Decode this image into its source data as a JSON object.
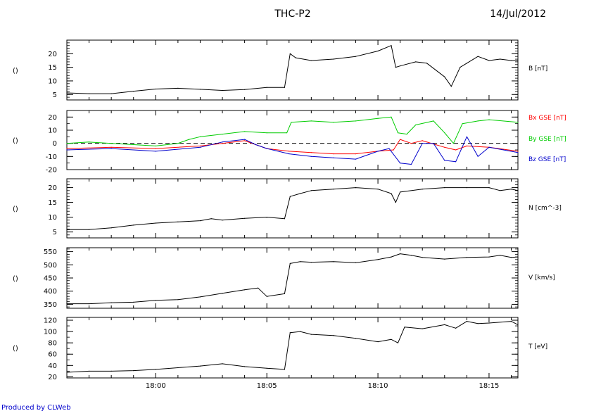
{
  "header": {
    "title": "THC-P2",
    "date": "14/Jul/2012"
  },
  "footer": {
    "credit": "Produced by CLWeb"
  },
  "time_axis": {
    "start": "17:56",
    "end": "18:16.3",
    "ticks": [
      "18:00",
      "18:05",
      "18:10",
      "18:15"
    ]
  },
  "chart_data": [
    {
      "type": "line",
      "ylabel": "()",
      "right_label": "B [nT]",
      "ylim": [
        3,
        25
      ],
      "yticks": [
        5,
        10,
        15,
        20
      ],
      "series": [
        {
          "name": "B [nT]",
          "color": "#000000",
          "x": [
            "17:56",
            "17:57",
            "17:58",
            "17:59",
            "18:00",
            "18:01",
            "18:02",
            "18:03",
            "18:04",
            "18:05",
            "18:05.8",
            "18:06.05",
            "18:06.3",
            "18:07",
            "18:08",
            "18:09",
            "18:10",
            "18:10.6",
            "18:10.8",
            "18:11",
            "18:11.7",
            "18:12.2",
            "18:13",
            "18:13.3",
            "18:13.7",
            "18:14",
            "18:14.5",
            "18:15",
            "18:15.5",
            "18:16",
            "18:16.3"
          ],
          "values": [
            5.6,
            5.3,
            5.3,
            6.2,
            7.0,
            7.3,
            6.9,
            6.5,
            6.8,
            7.6,
            7.6,
            20.0,
            18.5,
            17.5,
            18.0,
            19.0,
            21.0,
            23.0,
            15.0,
            15.5,
            17.0,
            16.5,
            11.5,
            8.0,
            15.0,
            16.5,
            19.0,
            17.5,
            18.0,
            17.5,
            17.5
          ]
        }
      ]
    },
    {
      "type": "line",
      "ylabel": "()",
      "ylim": [
        -20,
        25
      ],
      "yticks": [
        -20,
        -10,
        0,
        10,
        20
      ],
      "zero_line": true,
      "series": [
        {
          "name": "Bx GSE [nT]",
          "color": "#ff0000",
          "x": [
            "17:56",
            "17:58",
            "18:00",
            "18:02",
            "18:03",
            "18:04",
            "18:04.5",
            "18:05",
            "18:06",
            "18:07",
            "18:08",
            "18:09",
            "18:10",
            "18:10.7",
            "18:11",
            "18:11.5",
            "18:12",
            "18:13",
            "18:13.5",
            "18:14",
            "18:15",
            "18:16.3"
          ],
          "values": [
            -4,
            -3,
            -4,
            -2,
            0,
            2,
            -1,
            -4,
            -6,
            -7,
            -8,
            -8,
            -6,
            -5,
            3,
            0,
            2,
            -3,
            -5,
            -2,
            -3,
            -6
          ]
        },
        {
          "name": "By GSE [nT]",
          "color": "#00cc00",
          "x": [
            "17:56",
            "17:57",
            "17:58",
            "17:59",
            "18:00",
            "18:01",
            "18:01.5",
            "18:02",
            "18:03",
            "18:04",
            "18:05",
            "18:05.9",
            "18:06.1",
            "18:07",
            "18:08",
            "18:09",
            "18:10",
            "18:10.6",
            "18:10.9",
            "18:11.3",
            "18:11.7",
            "18:12.5",
            "18:13",
            "18:13.4",
            "18:13.8",
            "18:14.5",
            "18:15",
            "18:16.3"
          ],
          "values": [
            0,
            1,
            0,
            -1,
            -2,
            0,
            3,
            5,
            7,
            9,
            8,
            8,
            16,
            17,
            16,
            17,
            19,
            20,
            8,
            7,
            14,
            17,
            8,
            0,
            15,
            17,
            18,
            16
          ]
        },
        {
          "name": "Bz GSE [nT]",
          "color": "#0000cc",
          "x": [
            "17:56",
            "17:58",
            "18:00",
            "18:02",
            "18:03",
            "18:04",
            "18:04.5",
            "18:05",
            "18:06",
            "18:07",
            "18:08",
            "18:09",
            "18:10",
            "18:10.5",
            "18:11",
            "18:11.5",
            "18:12",
            "18:12.5",
            "18:13",
            "18:13.5",
            "18:14",
            "18:14.5",
            "18:15",
            "18:16.3"
          ],
          "values": [
            -5,
            -4,
            -6,
            -3,
            1,
            3,
            -1,
            -4,
            -8,
            -10,
            -11,
            -12,
            -6,
            -4,
            -15,
            -16,
            0,
            0,
            -13,
            -14,
            5,
            -10,
            -3,
            -7
          ]
        }
      ]
    },
    {
      "type": "line",
      "ylabel": "()",
      "right_label": "N [cm^-3]",
      "ylim": [
        3,
        23
      ],
      "yticks": [
        5,
        10,
        15,
        20
      ],
      "series": [
        {
          "name": "N [cm^-3]",
          "color": "#000000",
          "x": [
            "17:56",
            "17:57",
            "17:58",
            "17:59",
            "18:00",
            "18:01",
            "18:02",
            "18:02.5",
            "18:03",
            "18:04",
            "18:05",
            "18:05.8",
            "18:06.05",
            "18:06.5",
            "18:07",
            "18:08",
            "18:09",
            "18:10",
            "18:10.6",
            "18:10.8",
            "18:11",
            "18:12",
            "18:13",
            "18:14",
            "18:15",
            "18:15.5",
            "18:16",
            "18:16.3"
          ],
          "values": [
            5.8,
            5.8,
            6.4,
            7.3,
            8.0,
            8.4,
            8.8,
            9.5,
            9.0,
            9.6,
            10.0,
            9.5,
            17.0,
            18.0,
            19.0,
            19.5,
            20.0,
            19.5,
            18.0,
            15.0,
            18.5,
            19.5,
            20.0,
            20.0,
            20.0,
            19.0,
            19.5,
            19.0
          ]
        }
      ]
    },
    {
      "type": "line",
      "ylabel": "()",
      "right_label": "V [km/s]",
      "ylim": [
        335,
        565
      ],
      "yticks": [
        350,
        400,
        450,
        500,
        550
      ],
      "series": [
        {
          "name": "V [km/s]",
          "color": "#000000",
          "x": [
            "17:56",
            "17:57",
            "17:58",
            "17:59",
            "18:00",
            "18:01",
            "18:02",
            "18:03",
            "18:04",
            "18:04.6",
            "18:05",
            "18:05.8",
            "18:06.05",
            "18:06.5",
            "18:07",
            "18:08",
            "18:09",
            "18:10",
            "18:10.6",
            "18:11",
            "18:11.5",
            "18:12",
            "18:13",
            "18:14",
            "18:15",
            "18:15.5",
            "18:16",
            "18:16.3"
          ],
          "values": [
            352,
            352,
            356,
            358,
            365,
            368,
            378,
            392,
            405,
            412,
            380,
            390,
            505,
            512,
            510,
            512,
            508,
            520,
            530,
            542,
            536,
            528,
            522,
            528,
            530,
            536,
            528,
            530
          ]
        }
      ]
    },
    {
      "type": "line",
      "ylabel": "()",
      "right_label": "T [eV]",
      "ylim": [
        18,
        125
      ],
      "yticks": [
        20,
        40,
        60,
        80,
        100,
        120
      ],
      "series": [
        {
          "name": "T [eV]",
          "color": "#000000",
          "x": [
            "17:56",
            "17:57",
            "17:58",
            "17:59",
            "18:00",
            "18:01",
            "18:02",
            "18:03",
            "18:04",
            "18:05",
            "18:05.8",
            "18:06.05",
            "18:06.5",
            "18:07",
            "18:08",
            "18:09",
            "18:10",
            "18:10.6",
            "18:10.9",
            "18:11.2",
            "18:12",
            "18:13",
            "18:13.5",
            "18:14",
            "18:14.5",
            "18:15",
            "18:16",
            "18:16.3"
          ],
          "values": [
            28,
            30,
            30,
            31,
            33,
            36,
            39,
            43,
            38,
            35,
            33,
            98,
            100,
            95,
            93,
            88,
            82,
            86,
            80,
            108,
            105,
            112,
            106,
            118,
            114,
            115,
            118,
            112
          ]
        }
      ]
    }
  ]
}
